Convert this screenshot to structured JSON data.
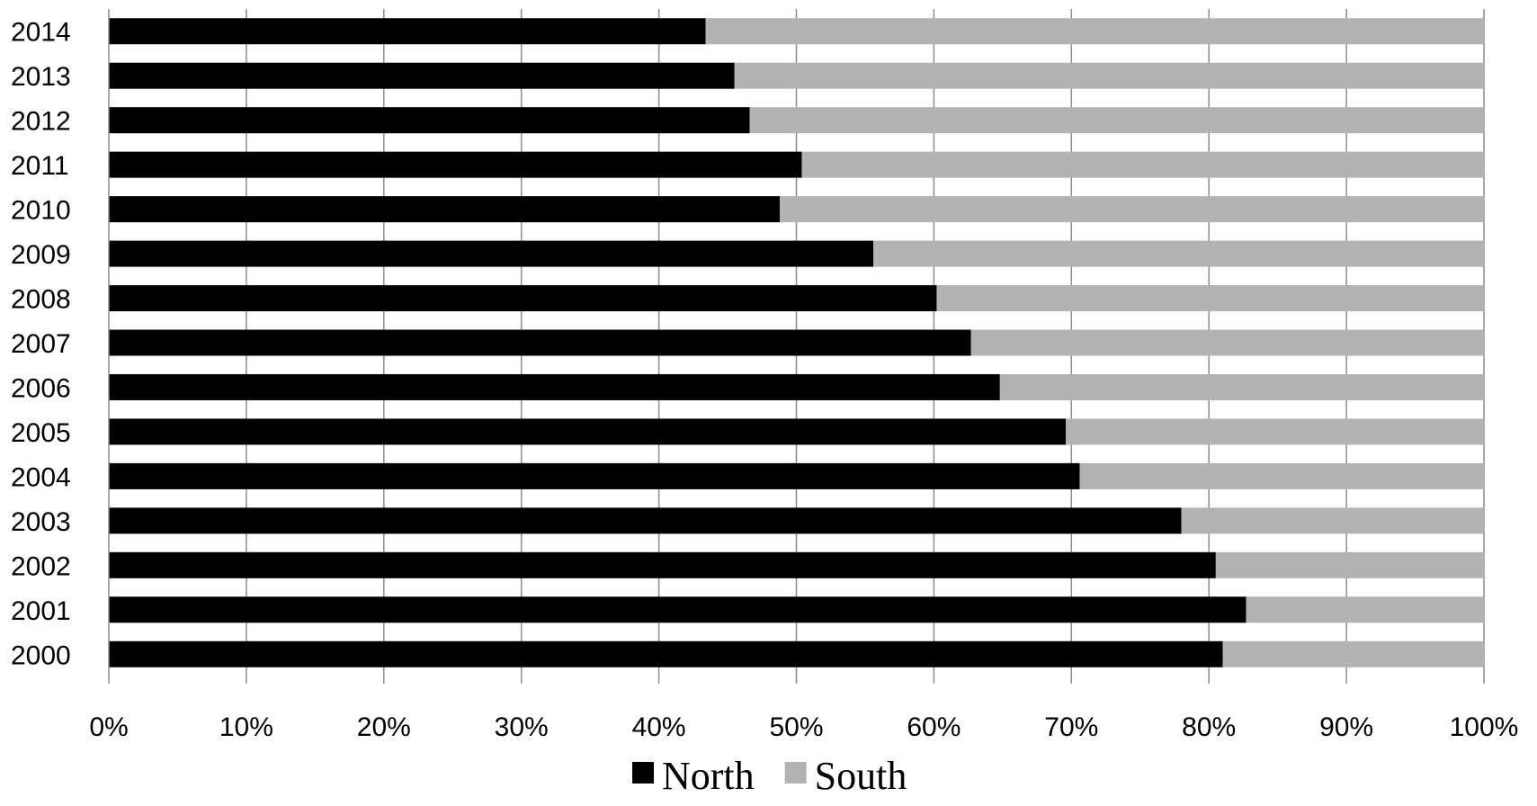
{
  "chart_data": {
    "type": "bar",
    "orientation": "horizontal",
    "stacking": "percent",
    "title": "",
    "xlabel": "",
    "ylabel": "",
    "xlim": [
      0,
      100
    ],
    "grid": true,
    "legend_position": "bottom",
    "categories": [
      "2000",
      "2001",
      "2002",
      "2003",
      "2004",
      "2005",
      "2006",
      "2007",
      "2008",
      "2009",
      "2010",
      "2011",
      "2012",
      "2013",
      "2014"
    ],
    "x_ticks": [
      "0%",
      "10%",
      "20%",
      "30%",
      "40%",
      "50%",
      "60%",
      "70%",
      "80%",
      "90%",
      "100%"
    ],
    "series": [
      {
        "name": "North",
        "color": "#000000",
        "values": [
          81.0,
          82.7,
          80.5,
          78.0,
          70.6,
          69.6,
          64.8,
          62.7,
          60.2,
          55.6,
          48.8,
          50.4,
          46.6,
          45.5,
          43.4
        ]
      },
      {
        "name": "South",
        "color": "#b3b3b3",
        "values": [
          19.0,
          17.3,
          19.5,
          22.0,
          29.4,
          30.4,
          35.2,
          37.3,
          39.8,
          44.4,
          51.2,
          49.6,
          53.4,
          54.5,
          56.6
        ]
      }
    ]
  }
}
